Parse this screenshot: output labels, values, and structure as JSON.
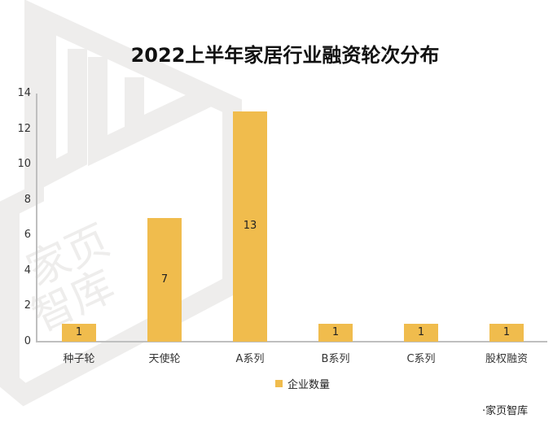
{
  "chart_data": {
    "type": "bar",
    "title": "2022上半年家居行业融资轮次分布",
    "categories": [
      "种子轮",
      "天使轮",
      "A系列",
      "B系列",
      "C系列",
      "股权融资"
    ],
    "series": [
      {
        "name": "企业数量",
        "values": [
          1,
          7,
          13,
          1,
          1,
          1
        ],
        "color": "#F0BC4D"
      }
    ],
    "xlabel": "",
    "ylabel": "",
    "ylim": [
      0,
      14
    ],
    "yticks": [
      "0",
      "2",
      "4",
      "6",
      "8",
      "10",
      "12",
      "14"
    ],
    "grid": false,
    "legend_position": "bottom",
    "data_labels": [
      "1",
      "7",
      "13",
      "1",
      "1",
      "1"
    ]
  },
  "legend": {
    "label": "企业数量",
    "color": "#F0BC4D"
  },
  "source": "·家页智库",
  "watermark": {
    "text1": "家页",
    "text2": "智库",
    "color": "#EEEDEC"
  }
}
